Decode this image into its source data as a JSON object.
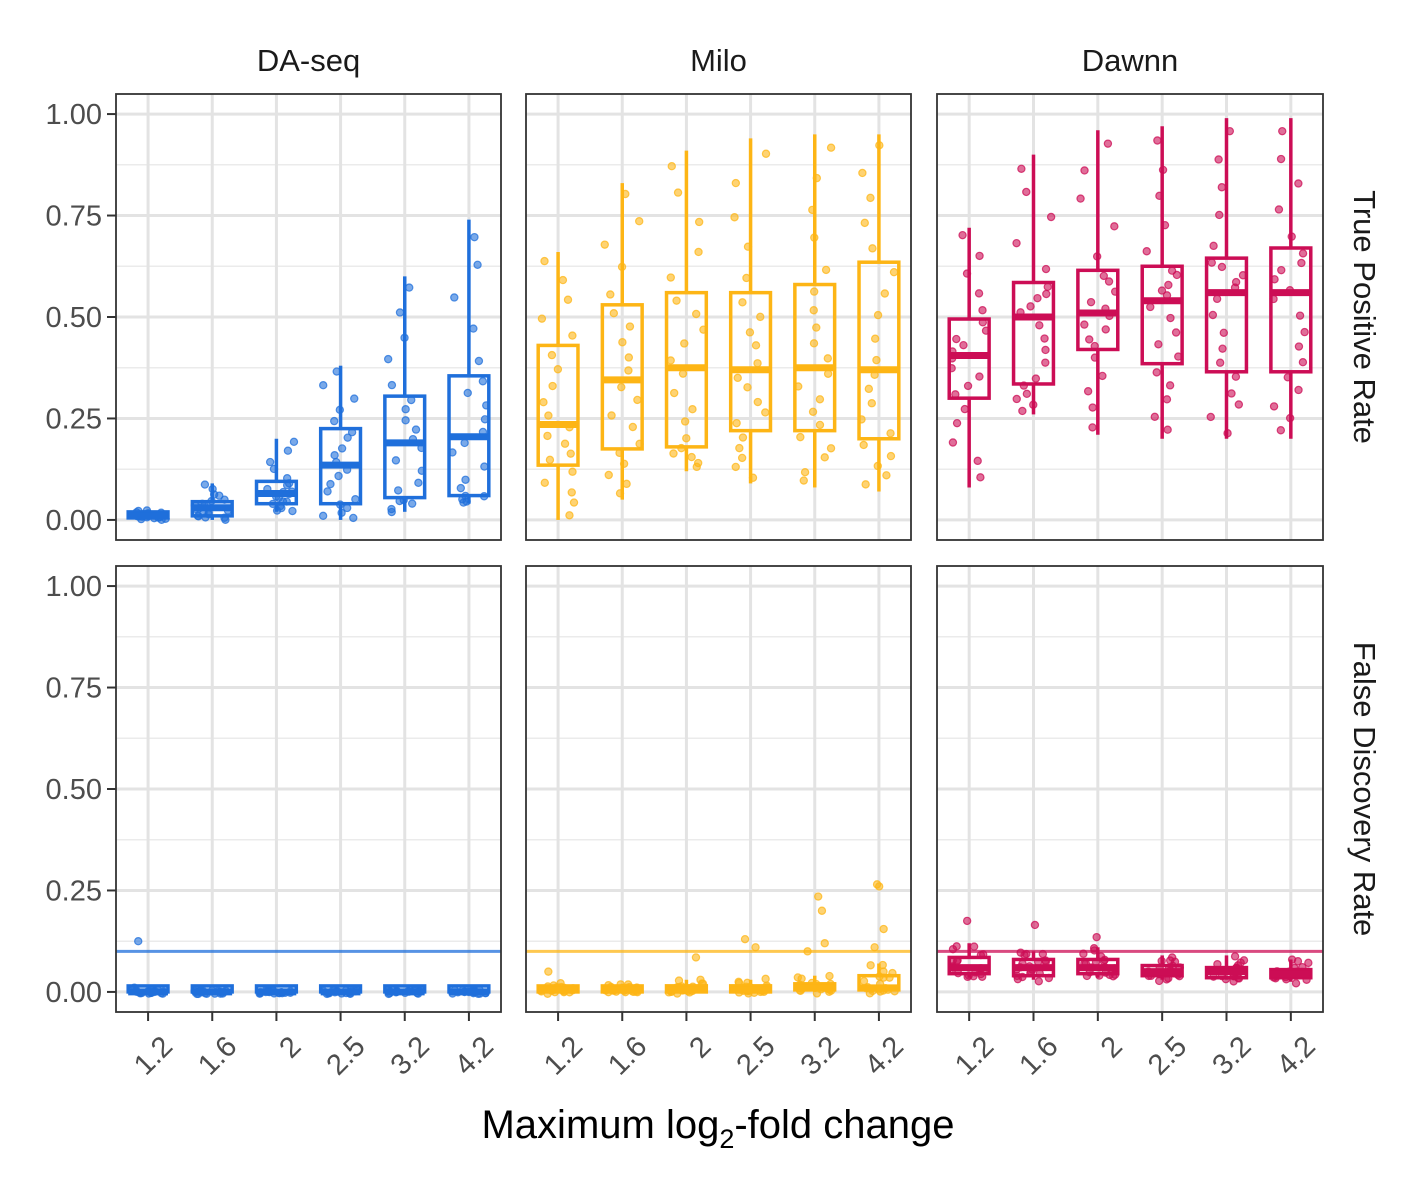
{
  "chart_data": {
    "type": "box",
    "facets": {
      "columns": [
        "DA-seq",
        "Milo",
        "Dawnn"
      ],
      "rows": [
        "True Positive Rate",
        "False Discovery Rate"
      ]
    },
    "categories": [
      "1.2",
      "1.6",
      "2",
      "2.5",
      "3.2",
      "4.2"
    ],
    "xlabel": {
      "main": "Maximum log",
      "sub": "2",
      "rest": "-fold change"
    },
    "ylim": [
      0,
      1
    ],
    "y_ticks": [
      0,
      0.25,
      0.5,
      0.75,
      1
    ],
    "y_tick_labels": [
      "0.00",
      "0.25",
      "0.50",
      "0.75",
      "1.00"
    ],
    "grid": true,
    "legend": "none",
    "colors": {
      "DA-seq": "#1f6fdb",
      "Milo": "#fdb515",
      "Dawnn": "#cc0d55"
    },
    "fdr_threshold": 0.1,
    "boxes": {
      "True Positive Rate": {
        "DA-seq": [
          {
            "min": 0.0,
            "q1": 0.005,
            "median": 0.01,
            "q3": 0.015,
            "max": 0.02
          },
          {
            "min": 0.0,
            "q1": 0.01,
            "median": 0.03,
            "q3": 0.045,
            "max": 0.09
          },
          {
            "min": 0.02,
            "q1": 0.04,
            "median": 0.065,
            "q3": 0.095,
            "max": 0.2
          },
          {
            "min": 0.0,
            "q1": 0.04,
            "median": 0.135,
            "q3": 0.225,
            "max": 0.38
          },
          {
            "min": 0.02,
            "q1": 0.055,
            "median": 0.19,
            "q3": 0.305,
            "max": 0.6
          },
          {
            "min": 0.04,
            "q1": 0.06,
            "median": 0.205,
            "q3": 0.355,
            "max": 0.74
          }
        ],
        "Milo": [
          {
            "min": 0.0,
            "q1": 0.135,
            "median": 0.235,
            "q3": 0.43,
            "max": 0.66
          },
          {
            "min": 0.05,
            "q1": 0.175,
            "median": 0.345,
            "q3": 0.53,
            "max": 0.83
          },
          {
            "min": 0.12,
            "q1": 0.18,
            "median": 0.375,
            "q3": 0.56,
            "max": 0.91
          },
          {
            "min": 0.09,
            "q1": 0.22,
            "median": 0.37,
            "q3": 0.56,
            "max": 0.94
          },
          {
            "min": 0.08,
            "q1": 0.22,
            "median": 0.375,
            "q3": 0.58,
            "max": 0.95
          },
          {
            "min": 0.07,
            "q1": 0.2,
            "median": 0.37,
            "q3": 0.635,
            "max": 0.95
          }
        ],
        "Dawnn": [
          {
            "min": 0.08,
            "q1": 0.3,
            "median": 0.405,
            "q3": 0.495,
            "max": 0.72
          },
          {
            "min": 0.26,
            "q1": 0.335,
            "median": 0.5,
            "q3": 0.585,
            "max": 0.9
          },
          {
            "min": 0.21,
            "q1": 0.42,
            "median": 0.51,
            "q3": 0.615,
            "max": 0.96
          },
          {
            "min": 0.2,
            "q1": 0.385,
            "median": 0.54,
            "q3": 0.625,
            "max": 0.97
          },
          {
            "min": 0.2,
            "q1": 0.365,
            "median": 0.56,
            "q3": 0.645,
            "max": 0.99
          },
          {
            "min": 0.2,
            "q1": 0.365,
            "median": 0.56,
            "q3": 0.67,
            "max": 0.99
          }
        ]
      },
      "False Discovery Rate": {
        "DA-seq": [
          {
            "min": 0.0,
            "q1": 0.0,
            "median": 0.0,
            "q3": 0.003,
            "max": 0.01
          },
          {
            "min": 0.0,
            "q1": 0.0,
            "median": 0.0,
            "q3": 0.0,
            "max": 0.0
          },
          {
            "min": 0.0,
            "q1": 0.0,
            "median": 0.0,
            "q3": 0.0,
            "max": 0.0
          },
          {
            "min": 0.0,
            "q1": 0.0,
            "median": 0.0,
            "q3": 0.0,
            "max": 0.0
          },
          {
            "min": 0.0,
            "q1": 0.0,
            "median": 0.0,
            "q3": 0.0,
            "max": 0.0
          },
          {
            "min": 0.0,
            "q1": 0.0,
            "median": 0.0,
            "q3": 0.0,
            "max": 0.0
          }
        ],
        "Milo": [
          {
            "min": 0.0,
            "q1": 0.0,
            "median": 0.005,
            "q3": 0.01,
            "max": 0.02
          },
          {
            "min": 0.0,
            "q1": 0.0,
            "median": 0.005,
            "q3": 0.01,
            "max": 0.02
          },
          {
            "min": 0.0,
            "q1": 0.0,
            "median": 0.005,
            "q3": 0.015,
            "max": 0.03
          },
          {
            "min": 0.0,
            "q1": 0.0,
            "median": 0.005,
            "q3": 0.015,
            "max": 0.03
          },
          {
            "min": 0.0,
            "q1": 0.005,
            "median": 0.01,
            "q3": 0.02,
            "max": 0.04
          },
          {
            "min": 0.0,
            "q1": 0.005,
            "median": 0.01,
            "q3": 0.04,
            "max": 0.07
          }
        ],
        "Dawnn": [
          {
            "min": 0.035,
            "q1": 0.045,
            "median": 0.06,
            "q3": 0.085,
            "max": 0.12
          },
          {
            "min": 0.03,
            "q1": 0.04,
            "median": 0.06,
            "q3": 0.08,
            "max": 0.1
          },
          {
            "min": 0.035,
            "q1": 0.045,
            "median": 0.06,
            "q3": 0.08,
            "max": 0.11
          },
          {
            "min": 0.03,
            "q1": 0.04,
            "median": 0.05,
            "q3": 0.065,
            "max": 0.09
          },
          {
            "min": 0.03,
            "q1": 0.035,
            "median": 0.05,
            "q3": 0.06,
            "max": 0.09
          },
          {
            "min": 0.025,
            "q1": 0.035,
            "median": 0.045,
            "q3": 0.055,
            "max": 0.08
          }
        ]
      }
    },
    "outlier_points": {
      "True Positive Rate": {
        "DA-seq": [],
        "Milo": [],
        "Dawnn": []
      },
      "False Discovery Rate": {
        "DA-seq": [
          {
            "x": "1.2",
            "y": 0.125
          }
        ],
        "Milo": [
          {
            "x": "1.2",
            "y": 0.05
          },
          {
            "x": "2",
            "y": 0.085
          },
          {
            "x": "2.5",
            "y": 0.13
          },
          {
            "x": "2.5",
            "y": 0.11
          },
          {
            "x": "3.2",
            "y": 0.235
          },
          {
            "x": "3.2",
            "y": 0.2
          },
          {
            "x": "3.2",
            "y": 0.12
          },
          {
            "x": "3.2",
            "y": 0.1
          },
          {
            "x": "4.2",
            "y": 0.265
          },
          {
            "x": "4.2",
            "y": 0.26
          },
          {
            "x": "4.2",
            "y": 0.155
          },
          {
            "x": "4.2",
            "y": 0.11
          }
        ],
        "Dawnn": [
          {
            "x": "1.2",
            "y": 0.175
          },
          {
            "x": "1.6",
            "y": 0.165
          },
          {
            "x": "2",
            "y": 0.135
          }
        ]
      }
    }
  }
}
